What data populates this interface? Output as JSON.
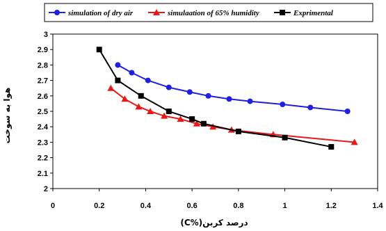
{
  "chart_data": {
    "type": "line",
    "xlabel": "درصد کربن(%C)",
    "ylabel": "هوا به سوخت",
    "xlim": [
      0,
      1.4
    ],
    "ylim": [
      2,
      3
    ],
    "xticks": [
      0,
      0.2,
      0.4,
      0.6,
      0.8,
      1,
      1.2,
      1.4
    ],
    "xtick_labels": [
      "0",
      "0.2",
      "0.4",
      "0.6",
      "0.8",
      "1",
      "1.2",
      "1.4"
    ],
    "yticks": [
      2,
      2.1,
      2.2,
      2.3,
      2.4,
      2.5,
      2.6,
      2.7,
      2.8,
      2.9,
      3
    ],
    "ytick_labels": [
      "2",
      "2.1",
      "2.2",
      "2.3",
      "2.4",
      "2.5",
      "2.6",
      "2.7",
      "2.8",
      "2.9",
      "3"
    ],
    "grid": false,
    "legend_position": "top",
    "series": [
      {
        "name": "simulation of dry air",
        "color": "#1f1fe0",
        "marker": "circle",
        "x": [
          0.28,
          0.34,
          0.41,
          0.5,
          0.59,
          0.67,
          0.76,
          0.85,
          0.99,
          1.11,
          1.27
        ],
        "y": [
          2.8,
          2.75,
          2.7,
          2.655,
          2.625,
          2.6,
          2.58,
          2.565,
          2.545,
          2.525,
          2.5
        ]
      },
      {
        "name": "simulaation of 65% humidity",
        "color": "#e81818",
        "marker": "triangle",
        "x": [
          0.25,
          0.31,
          0.37,
          0.42,
          0.48,
          0.55,
          0.62,
          0.69,
          0.77,
          0.95,
          1.3
        ],
        "y": [
          2.65,
          2.58,
          2.53,
          2.5,
          2.47,
          2.45,
          2.42,
          2.4,
          2.38,
          2.35,
          2.3
        ]
      },
      {
        "name": "Exprimental",
        "color": "#000000",
        "marker": "square",
        "x": [
          0.2,
          0.28,
          0.38,
          0.5,
          0.6,
          0.65,
          0.8,
          1.0,
          1.2
        ],
        "y": [
          2.9,
          2.7,
          2.6,
          2.5,
          2.45,
          2.42,
          2.37,
          2.33,
          2.27
        ]
      }
    ]
  }
}
